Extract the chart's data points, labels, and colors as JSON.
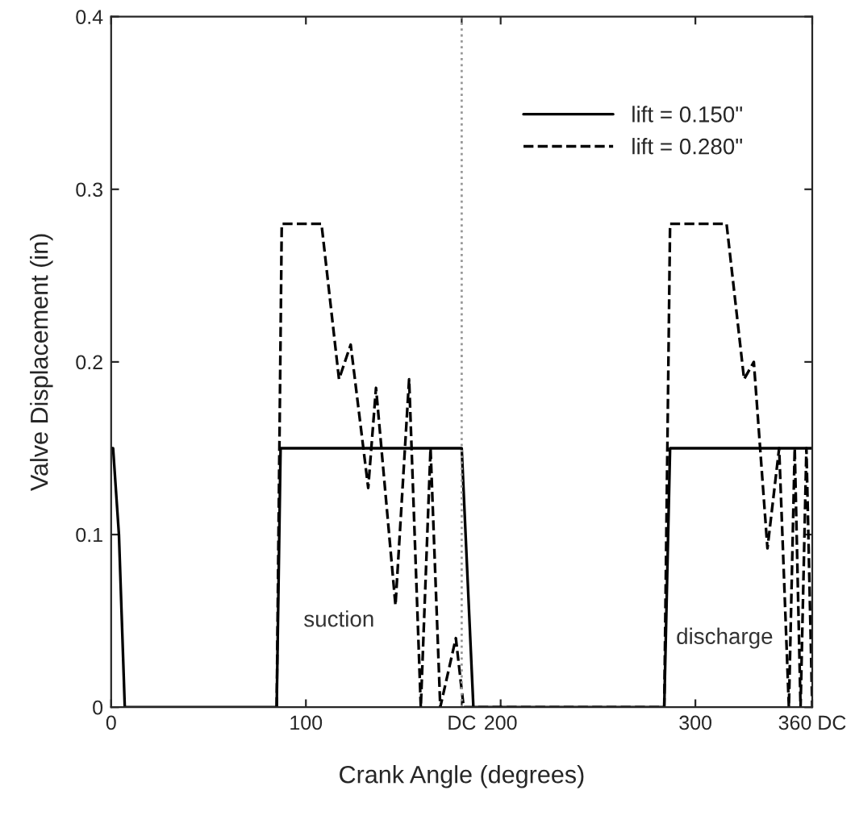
{
  "chart_data": {
    "type": "line",
    "xlabel": "Crank Angle (degrees)",
    "ylabel": "Valve Displacement (in)",
    "xlim": [
      0,
      360
    ],
    "ylim": [
      0,
      0.4
    ],
    "xticks": [
      0,
      100,
      {
        "value": 180,
        "label": "DC"
      },
      200,
      300,
      {
        "value": 360,
        "label": "360 DC"
      }
    ],
    "yticks": [
      0,
      0.1,
      0.2,
      0.3,
      0.4
    ],
    "series": [
      {
        "name": "lift = 0.150\"",
        "color": "#000000",
        "line_style": "solid",
        "x": [
          0,
          1,
          4,
          7,
          85,
          87,
          180,
          186,
          284,
          287,
          360
        ],
        "values": [
          0.15,
          0.15,
          0.1,
          0,
          0,
          0.15,
          0.15,
          0,
          0,
          0.15,
          0.15
        ]
      },
      {
        "name": "lift = 0.280\"",
        "color": "#000000",
        "line_style": "dashed",
        "x": [
          85,
          87.6,
          108,
          117,
          123,
          132,
          136,
          146,
          153,
          159,
          164,
          169,
          177,
          181,
          284,
          287,
          316,
          325,
          330,
          337,
          343,
          348,
          351,
          354,
          357,
          360
        ],
        "values": [
          0,
          0.28,
          0.28,
          0.19,
          0.21,
          0.127,
          0.185,
          0.059,
          0.19,
          0,
          0.15,
          0,
          0.04,
          0,
          0,
          0.28,
          0.28,
          0.19,
          0.2,
          0.092,
          0.15,
          0,
          0.15,
          0,
          0.15,
          0
        ]
      }
    ],
    "ref_lines": [
      {
        "axis": "x",
        "value": 180,
        "color": "#999999",
        "line_style": "dotted"
      }
    ],
    "annotations": [
      "suction",
      "discharge"
    ],
    "legend": "top right",
    "grid": false
  }
}
